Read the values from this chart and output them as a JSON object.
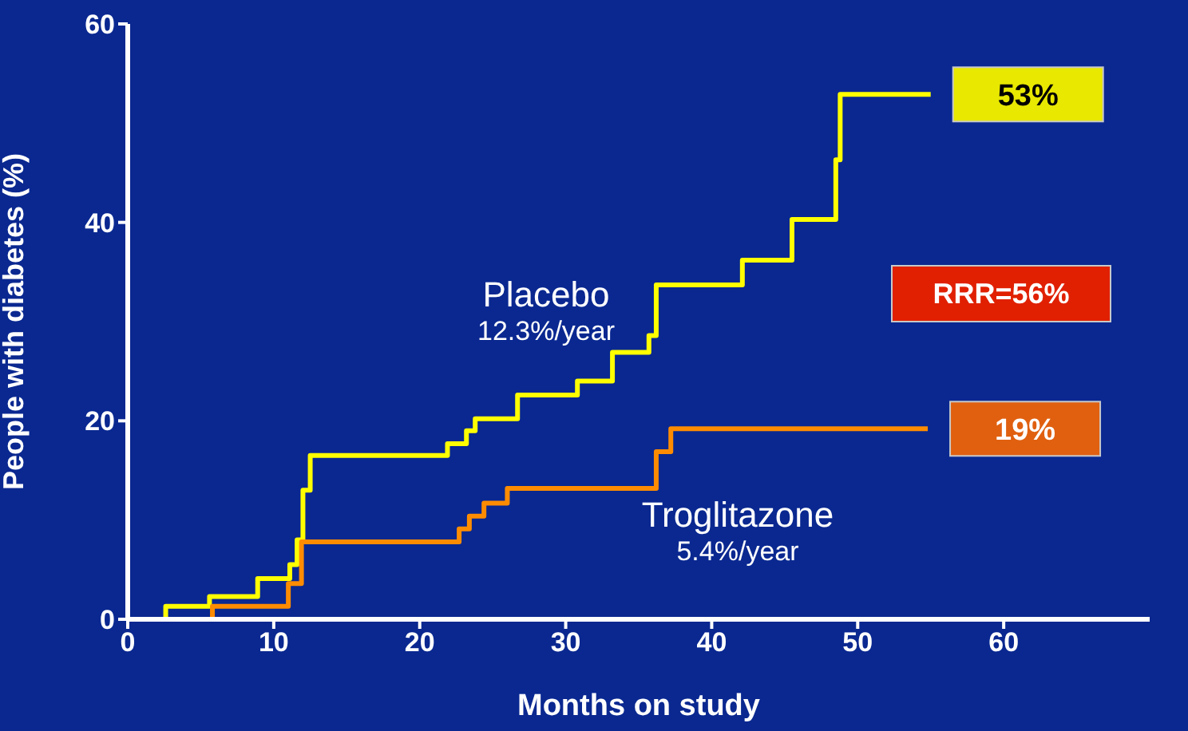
{
  "chart_data": {
    "type": "step",
    "xlabel": "Months on study",
    "ylabel": "People with diabetes (%)",
    "xlim": [
      0,
      70
    ],
    "xticks": [
      0,
      10,
      20,
      30,
      40,
      50,
      60
    ],
    "ylim": [
      0,
      60
    ],
    "yticks": [
      0,
      20,
      40,
      60
    ],
    "marker": "none",
    "series": [
      {
        "name": "Placebo",
        "color": "#ffff00",
        "x": [
          0,
          2.6,
          5.6,
          8.9,
          10.5,
          11.1,
          11.6,
          12.0,
          12.5,
          21.9,
          23.2,
          23.8,
          26.7,
          30.8,
          33.2,
          35.7,
          36.2,
          42.1,
          45.5,
          48.5,
          48.8,
          55
        ],
        "values": [
          0,
          1.3,
          2.3,
          4.1,
          4.1,
          5.5,
          8,
          13,
          16.5,
          17.7,
          19,
          20.2,
          22.6,
          24,
          26.9,
          28.6,
          33.7,
          36.2,
          40.3,
          46.3,
          52.9,
          52.9
        ]
      },
      {
        "name": "Troglitazone",
        "color": "#ff8c00",
        "x": [
          0,
          5.8,
          11,
          11.9,
          22.7,
          23.4,
          24.4,
          26,
          36.2,
          37.2,
          54.8
        ],
        "values": [
          0,
          1.3,
          3.6,
          7.8,
          9.1,
          10.4,
          11.7,
          13.2,
          16.9,
          19.2,
          19.2
        ]
      }
    ],
    "annotations": [
      "12.3%/year",
      "5.4%/year",
      {
        "text": "53%",
        "x": 55,
        "y": 52.9
      },
      "RRR=56%",
      {
        "text": "19%",
        "x": 54.8,
        "y": 19.2
      }
    ]
  }
}
